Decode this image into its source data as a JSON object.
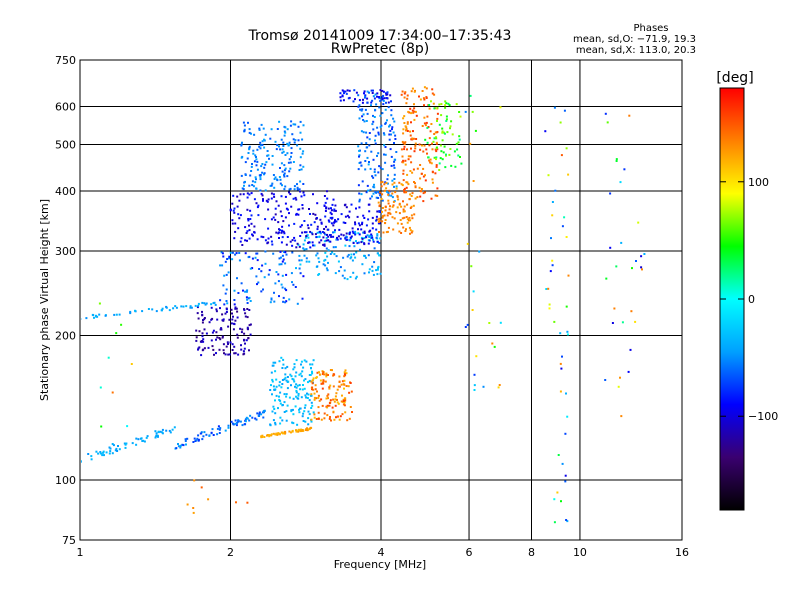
{
  "chart_data": {
    "type": "scatter",
    "title": "Tromsø 20141009 17:34:00–17:35:43",
    "subtitle": "RwPretec (8p)",
    "xlabel": "Frequency [MHz]",
    "ylabel": "Stationary phase Virtual Height [km]",
    "x_scale": "log",
    "y_scale": "log",
    "xlim": [
      1,
      16
    ],
    "ylim": [
      75,
      750
    ],
    "x_ticks": [
      {
        "value": 1,
        "label": "1"
      },
      {
        "value": 2,
        "label": "2"
      },
      {
        "value": 4,
        "label": "4"
      },
      {
        "value": 6,
        "label": "6"
      },
      {
        "value": 8,
        "label": "8"
      },
      {
        "value": 10,
        "label": "10"
      },
      {
        "value": 16,
        "label": "16"
      }
    ],
    "y_ticks": [
      {
        "value": 75,
        "label": "75"
      },
      {
        "value": 100,
        "label": "100"
      },
      {
        "value": 200,
        "label": "200"
      },
      {
        "value": 300,
        "label": "300"
      },
      {
        "value": 400,
        "label": "400"
      },
      {
        "value": 500,
        "label": "500"
      },
      {
        "value": 600,
        "label": "600"
      },
      {
        "value": 750,
        "label": "750"
      }
    ],
    "grid": true,
    "stats": {
      "heading": "Phases",
      "line_o": "mean, sd,O: −71.9, 19.3",
      "line_x": "mean, sd,X: 113.0, 20.3"
    },
    "colorbar": {
      "label": "[deg]",
      "range": [
        -180,
        180
      ],
      "ticks": [
        {
          "value": 100,
          "label": "100"
        },
        {
          "value": 0,
          "label": "0"
        },
        {
          "value": -100,
          "label": "−100"
        }
      ],
      "colormap": [
        "#000000",
        "#3a0070",
        "#0000ff",
        "#00a0ff",
        "#00ffff",
        "#00ff00",
        "#ffff00",
        "#ff8000",
        "#ff0000"
      ]
    },
    "clusters": [
      {
        "xr": [
          1.0,
          1.55
        ],
        "yr": [
          110,
          128
        ],
        "phase": [
          -50,
          -30
        ],
        "n": 60,
        "shape": "trace"
      },
      {
        "xr": [
          1.55,
          2.35
        ],
        "yr": [
          118,
          138
        ],
        "phase": [
          -80,
          -40
        ],
        "n": 80,
        "shape": "trace"
      },
      {
        "xr": [
          2.3,
          2.9
        ],
        "yr": [
          123,
          128
        ],
        "phase": [
          110,
          130
        ],
        "n": 60,
        "shape": "trace"
      },
      {
        "xr": [
          2.4,
          2.95
        ],
        "yr": [
          130,
          180
        ],
        "phase": [
          -45,
          -20
        ],
        "n": 160
      },
      {
        "xr": [
          2.9,
          3.5
        ],
        "yr": [
          133,
          170
        ],
        "phase": [
          110,
          160
        ],
        "n": 140
      },
      {
        "xr": [
          1.7,
          2.2
        ],
        "yr": [
          182,
          230
        ],
        "phase": [
          -130,
          -100
        ],
        "n": 130
      },
      {
        "xr": [
          1.0,
          2.0
        ],
        "yr": [
          218,
          235
        ],
        "phase": [
          -50,
          -30
        ],
        "n": 50,
        "shape": "trace"
      },
      {
        "xr": [
          1.9,
          2.8
        ],
        "yr": [
          232,
          300
        ],
        "phase": [
          -90,
          -40
        ],
        "n": 110
      },
      {
        "xr": [
          2.7,
          4.0
        ],
        "yr": [
          262,
          330
        ],
        "phase": [
          -60,
          -20
        ],
        "n": 140
      },
      {
        "xr": [
          2.0,
          3.3
        ],
        "yr": [
          305,
          400
        ],
        "phase": [
          -115,
          -80
        ],
        "n": 200
      },
      {
        "xr": [
          3.0,
          4.0
        ],
        "yr": [
          310,
          375
        ],
        "phase": [
          -110,
          -80
        ],
        "n": 110
      },
      {
        "xr": [
          2.1,
          2.8
        ],
        "yr": [
          400,
          560
        ],
        "phase": [
          -70,
          -40
        ],
        "n": 180
      },
      {
        "xr": [
          3.6,
          4.3
        ],
        "yr": [
          380,
          650
        ],
        "phase": [
          -80,
          -40
        ],
        "n": 170
      },
      {
        "xr": [
          3.95,
          4.7
        ],
        "yr": [
          325,
          420
        ],
        "phase": [
          120,
          145
        ],
        "n": 110
      },
      {
        "xr": [
          4.4,
          5.2
        ],
        "yr": [
          380,
          660
        ],
        "phase": [
          120,
          165
        ],
        "n": 170
      },
      {
        "xr": [
          4.9,
          5.8
        ],
        "yr": [
          440,
          620
        ],
        "phase": [
          20,
          80
        ],
        "n": 70
      },
      {
        "xr": [
          3.3,
          4.2
        ],
        "yr": [
          610,
          650
        ],
        "phase": [
          -110,
          -70
        ],
        "n": 50
      },
      {
        "xr": [
          5.9,
          7.0
        ],
        "yr": [
          150,
          640
        ],
        "phase": [
          -100,
          140
        ],
        "n": 25
      },
      {
        "xr": [
          8.5,
          9.5
        ],
        "yr": [
          80,
          640
        ],
        "phase": [
          -100,
          150
        ],
        "n": 45
      },
      {
        "xr": [
          11.0,
          13.5
        ],
        "yr": [
          130,
          620
        ],
        "phase": [
          -110,
          140
        ],
        "n": 30
      },
      {
        "xr": [
          1.6,
          2.3
        ],
        "yr": [
          84,
          102
        ],
        "phase": [
          120,
          150
        ],
        "n": 8
      },
      {
        "xr": [
          1.0,
          1.3
        ],
        "yr": [
          118,
          340
        ],
        "phase": [
          -40,
          150
        ],
        "n": 10
      }
    ]
  }
}
